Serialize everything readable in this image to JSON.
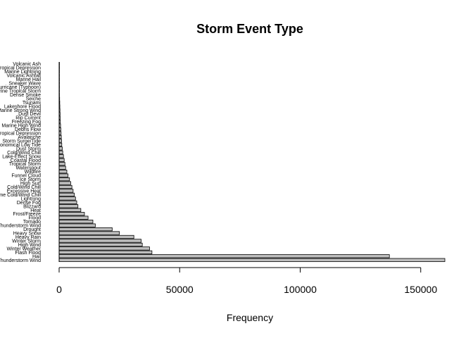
{
  "chart_data": {
    "type": "bar",
    "orientation": "horizontal",
    "title": "Storm Event Type",
    "xlabel": "Frequency",
    "ylabel": "",
    "xlim": [
      0,
      160000
    ],
    "xticks": [
      0,
      50000,
      100000,
      150000
    ],
    "xtick_labels": [
      "0",
      "50000",
      "100000",
      "150000"
    ],
    "bar_color": "#bebebe",
    "categories": [
      "Volcanic Ash",
      "Tropical Depression",
      "Marine Lightning",
      "Volcanic Ashfall",
      "Marine Hail",
      "Sneaker Wave",
      "Hurricane (Typhoon)",
      "Marine Tropical Storm",
      "Dense Smoke",
      "Seiche",
      "Tsunami",
      "Lakeshore Flood",
      "Marine Strong Wind",
      "Dust Devil",
      "Rip Current",
      "Freezing Fog",
      "Marine High Wind",
      "Debris Flow",
      "Tropical Depression",
      "Avalanche",
      "Storm Surge/Tide",
      "Astronomical Low Tide",
      "Dust Storm",
      "Cold/Wind Chill",
      "Lake-Effect Snow",
      "Coastal Flood",
      "Tropical Storm",
      "Waterspout",
      "Wildfire",
      "Funnel Cloud",
      "Ice Storm",
      "High Surf",
      "Cold/Wind Chill",
      "Excessive Heat",
      "Extreme Cold/Wind Chill",
      "Lightning",
      "Dense Fog",
      "Blizzard",
      "Heat",
      "Frost/Freeze",
      "Flood",
      "Tornado",
      "Marine Thunderstorm Wind",
      "Drought",
      "Heavy Snow",
      "Heavy Rain",
      "Winter Storm",
      "High Wind",
      "Winter Weather",
      "Flash Flood",
      "Hail",
      "Thunderstorm Wind"
    ],
    "values": [
      10,
      20,
      30,
      40,
      60,
      80,
      100,
      130,
      150,
      200,
      250,
      300,
      350,
      400,
      450,
      500,
      600,
      700,
      800,
      900,
      1000,
      1100,
      1300,
      1500,
      1800,
      2100,
      2400,
      2700,
      3200,
      3700,
      4300,
      4800,
      5300,
      5800,
      6300,
      6800,
      7300,
      7800,
      9000,
      10500,
      12000,
      14000,
      15000,
      22000,
      25000,
      31000,
      34000,
      34500,
      37500,
      38500,
      137000,
      160000
    ]
  }
}
